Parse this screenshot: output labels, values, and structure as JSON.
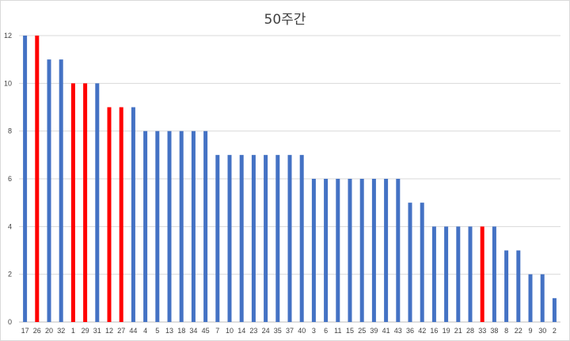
{
  "chart_data": {
    "type": "bar",
    "title": "50주간",
    "xlabel": "",
    "ylabel": "",
    "ylim": [
      0,
      12
    ],
    "y_ticks": [
      "0",
      "2",
      "4",
      "6",
      "8",
      "10",
      "12"
    ],
    "grid": true,
    "categories": [
      "17",
      "26",
      "20",
      "32",
      "1",
      "29",
      "31",
      "12",
      "27",
      "44",
      "4",
      "5",
      "13",
      "18",
      "34",
      "45",
      "7",
      "10",
      "14",
      "23",
      "24",
      "35",
      "37",
      "40",
      "3",
      "6",
      "11",
      "15",
      "25",
      "39",
      "41",
      "43",
      "36",
      "42",
      "16",
      "19",
      "21",
      "28",
      "33",
      "38",
      "8",
      "22",
      "9",
      "30",
      "2"
    ],
    "values": [
      12,
      12,
      11,
      11,
      10,
      10,
      10,
      9,
      9,
      9,
      8,
      8,
      8,
      8,
      8,
      8,
      7,
      7,
      7,
      7,
      7,
      7,
      7,
      7,
      6,
      6,
      6,
      6,
      6,
      6,
      6,
      6,
      5,
      5,
      4,
      4,
      4,
      4,
      4,
      4,
      3,
      3,
      2,
      2,
      1
    ],
    "highlighted": [
      "26",
      "1",
      "29",
      "12",
      "27",
      "33"
    ],
    "colors": {
      "default": "#4472c4",
      "highlight": "#ff0000",
      "grid": "#d9d9d9",
      "axis": "#bfbfbf"
    }
  }
}
